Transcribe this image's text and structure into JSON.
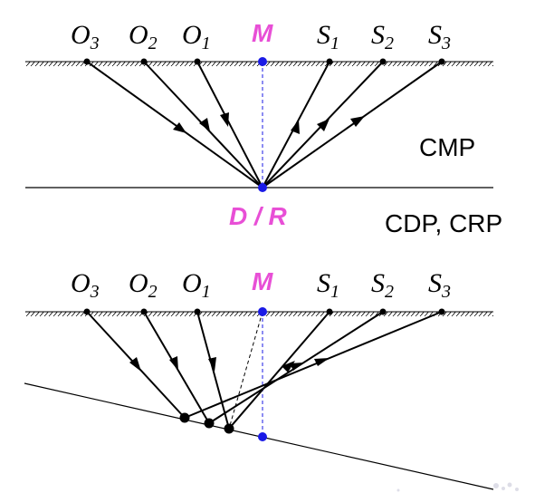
{
  "top_panel": {
    "surface_points": [
      {
        "letter": "O",
        "sub": "3"
      },
      {
        "letter": "O",
        "sub": "2"
      },
      {
        "letter": "O",
        "sub": "1"
      },
      {
        "letter": "M",
        "sub": ""
      },
      {
        "letter": "S",
        "sub": "1"
      },
      {
        "letter": "S",
        "sub": "2"
      },
      {
        "letter": "S",
        "sub": "3"
      }
    ],
    "reflector_point_label": "D / R",
    "gather_label": "CMP"
  },
  "middle_label": "CDP, CRP",
  "bottom_panel": {
    "surface_points": [
      {
        "letter": "O",
        "sub": "3"
      },
      {
        "letter": "O",
        "sub": "2"
      },
      {
        "letter": "O",
        "sub": "1"
      },
      {
        "letter": "M",
        "sub": ""
      },
      {
        "letter": "S",
        "sub": "1"
      },
      {
        "letter": "S",
        "sub": "2"
      },
      {
        "letter": "S",
        "sub": "3"
      }
    ]
  },
  "colors": {
    "midpoint_fill": "#1a1ae6",
    "midpoint_label": "#e84fd6",
    "ray": "#000000"
  }
}
